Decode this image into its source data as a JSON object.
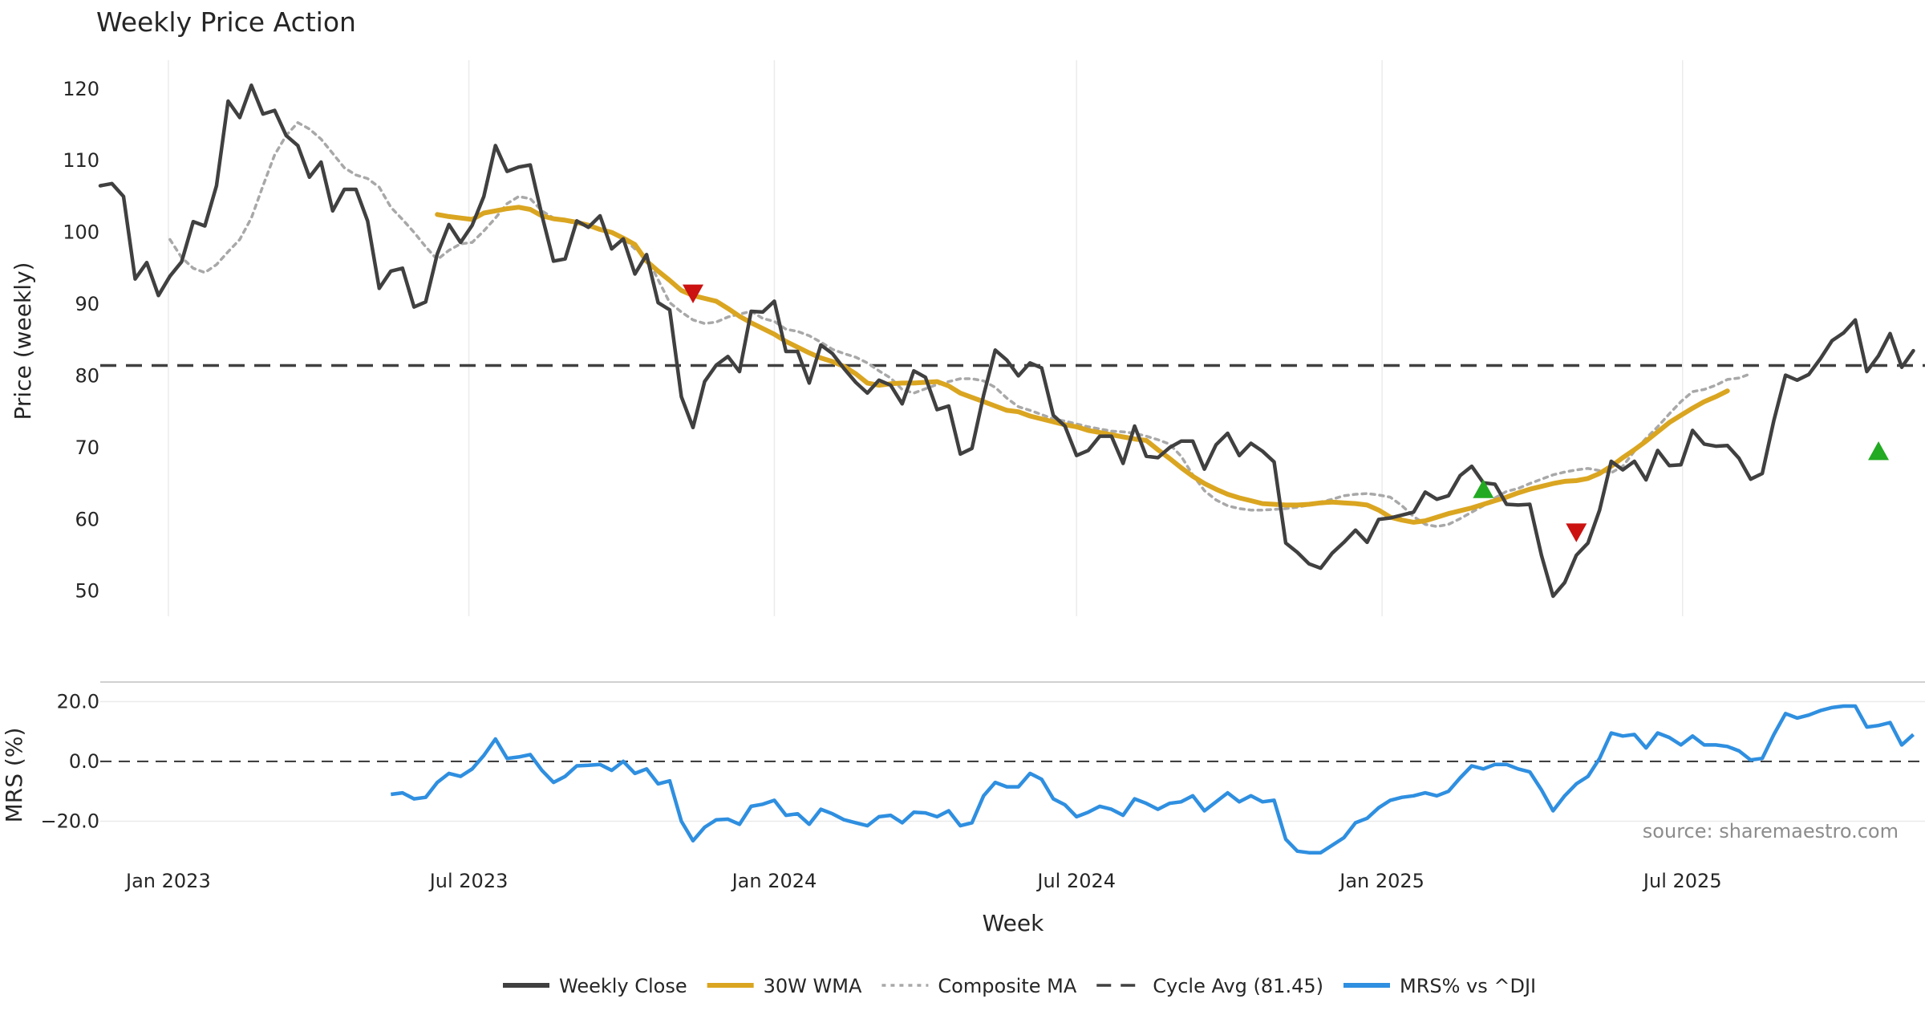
{
  "chart_data": [
    {
      "type": "line",
      "title": "Weekly Price Action",
      "xlabel": "",
      "ylabel": "Price (weekly)",
      "ylim": [
        46.5,
        124
      ],
      "yticks": [
        50,
        60,
        70,
        80,
        90,
        100,
        110,
        120
      ],
      "x_start": "2022-11-21",
      "x_step_days": 7,
      "xlim": [
        "2022-11-21",
        "2025-11-24"
      ],
      "xticks": [
        {
          "date": "2023-01-01",
          "label": "Jan 2023"
        },
        {
          "date": "2023-07-01",
          "label": "Jul 2023"
        },
        {
          "date": "2024-01-01",
          "label": "Jan 2024"
        },
        {
          "date": "2024-07-01",
          "label": "Jul 2024"
        },
        {
          "date": "2025-01-01",
          "label": "Jan 2025"
        },
        {
          "date": "2025-07-01",
          "label": "Jul 2025"
        }
      ],
      "cycle_avg": 81.45,
      "series": [
        {
          "name": "Weekly Close",
          "color": "#404040",
          "start_index": 0,
          "values": [
            106.5,
            106.8,
            105.0,
            93.5,
            95.8,
            91.2,
            93.9,
            95.9,
            101.5,
            100.9,
            106.5,
            118.3,
            116.0,
            120.5,
            116.5,
            117.0,
            113.5,
            112.1,
            107.7,
            109.8,
            103.0,
            106.0,
            106.0,
            101.6,
            92.2,
            94.6,
            95.0,
            89.6,
            90.3,
            97.0,
            101.1,
            98.6,
            101.0,
            105.0,
            112.1,
            108.5,
            109.1,
            109.4,
            102.4,
            96.0,
            96.3,
            101.6,
            100.7,
            102.3,
            97.7,
            99.1,
            94.2,
            96.9,
            90.2,
            89.2,
            77.1,
            72.8,
            79.2,
            81.5,
            82.7,
            80.6,
            89.0,
            88.9,
            90.4,
            83.4,
            83.4,
            79.0,
            84.3,
            83.1,
            81.0,
            79.1,
            77.6,
            79.4,
            78.7,
            76.1,
            80.7,
            79.8,
            75.3,
            75.8,
            69.1,
            69.9,
            77.3,
            83.6,
            82.2,
            80.0,
            81.8,
            81.1,
            74.5,
            73.0,
            68.9,
            69.6,
            71.6,
            71.6,
            67.8,
            73.0,
            68.8,
            68.6,
            70.0,
            70.9,
            70.9,
            67.0,
            70.4,
            72.0,
            68.9,
            70.6,
            69.5,
            68.0,
            56.7,
            55.4,
            53.8,
            53.2,
            55.3,
            56.8,
            58.5,
            56.8,
            60.0,
            60.2,
            60.6,
            61.0,
            63.8,
            62.8,
            63.3,
            66.1,
            67.4,
            65.1,
            64.9,
            62.1,
            62.0,
            62.1,
            55.0,
            49.3,
            51.2,
            55.0,
            56.7,
            61.3,
            68.1,
            66.9,
            68.1,
            65.5,
            69.6,
            67.5,
            67.6,
            72.4,
            70.5,
            70.2,
            70.3,
            68.5,
            65.6,
            66.4,
            73.8,
            80.1,
            79.4,
            80.2,
            82.4,
            84.9,
            86.0,
            87.8,
            80.6,
            82.8,
            85.9,
            81.2,
            83.5
          ]
        },
        {
          "name": "30W WMA",
          "color": "#DAA520",
          "start_index": 29,
          "values": [
            102.5,
            102.2,
            102.0,
            101.8,
            102.7,
            103.0,
            103.3,
            103.5,
            103.2,
            102.3,
            101.9,
            101.7,
            101.4,
            101.0,
            100.4,
            100.0,
            99.2,
            98.3,
            96.0,
            94.6,
            93.3,
            91.9,
            91.2,
            90.8,
            90.4,
            89.4,
            88.3,
            87.4,
            86.6,
            85.8,
            84.8,
            84.0,
            83.2,
            82.5,
            82.0,
            81.3,
            80.3,
            79.0,
            78.7,
            78.9,
            79.0,
            79.0,
            79.1,
            79.2,
            78.6,
            77.6,
            77.0,
            76.4,
            75.8,
            75.2,
            75.0,
            74.4,
            74.0,
            73.6,
            73.2,
            72.9,
            72.4,
            72.1,
            71.8,
            71.5,
            71.2,
            71.0,
            69.7,
            68.5,
            67.2,
            66.0,
            65.0,
            64.2,
            63.5,
            63.0,
            62.6,
            62.2,
            62.1,
            62.0,
            62.0,
            62.1,
            62.3,
            62.4,
            62.3,
            62.2,
            62.0,
            61.3,
            60.3,
            59.9,
            59.6,
            59.8,
            60.3,
            60.8,
            61.2,
            61.6,
            62.1,
            62.6,
            63.1,
            63.7,
            64.2,
            64.6,
            65.0,
            65.3,
            65.4,
            65.7,
            66.4,
            67.4,
            68.6,
            69.7,
            70.9,
            72.2,
            73.5,
            74.5,
            75.5,
            76.4,
            77.1,
            77.9
          ]
        },
        {
          "name": "Composite MA",
          "color": "#a8a8a8",
          "start_index": 6,
          "values": [
            99.0,
            96.5,
            95.0,
            94.4,
            95.5,
            97.3,
            99.0,
            102.0,
            106.5,
            110.8,
            113.5,
            115.3,
            114.4,
            113.0,
            111.0,
            109.0,
            108.0,
            107.5,
            106.3,
            103.5,
            101.8,
            100.0,
            98.0,
            96.2,
            97.5,
            98.4,
            98.6,
            100.2,
            102.0,
            104.0,
            105.0,
            104.7,
            103.0,
            102.0,
            101.6,
            101.2,
            101.1,
            100.4,
            99.9,
            99.2,
            97.7,
            96.6,
            93.4,
            90.2,
            88.9,
            87.8,
            87.3,
            87.5,
            88.2,
            88.6,
            89.0,
            88.0,
            87.6,
            86.5,
            86.2,
            85.6,
            84.7,
            83.7,
            83.1,
            82.6,
            81.8,
            80.7,
            79.7,
            78.1,
            77.6,
            78.2,
            78.8,
            79.2,
            79.6,
            79.6,
            79.3,
            78.4,
            76.9,
            75.7,
            75.2,
            74.6,
            74.0,
            73.7,
            73.3,
            72.9,
            72.6,
            72.3,
            72.2,
            72.0,
            71.6,
            71.1,
            70.5,
            68.8,
            66.2,
            64.0,
            62.7,
            61.9,
            61.5,
            61.3,
            61.3,
            61.4,
            61.5,
            61.7,
            62.0,
            62.4,
            62.8,
            63.3,
            63.5,
            63.6,
            63.4,
            63.1,
            61.9,
            60.4,
            59.3,
            59.0,
            59.3,
            60.1,
            61.0,
            61.9,
            63.0,
            63.9,
            64.3,
            65.0,
            65.6,
            66.2,
            66.6,
            66.9,
            67.1,
            66.8,
            66.5,
            67.4,
            69.5,
            71.3,
            72.9,
            74.7,
            76.4,
            77.8,
            78.1,
            78.7,
            79.5,
            79.7,
            80.3
          ]
        }
      ],
      "markers": [
        {
          "type": "sell",
          "index": 51,
          "value": 91.5,
          "color": "#cc1111"
        },
        {
          "type": "buy",
          "index": 119,
          "value": 64.2,
          "color": "#22aa22"
        },
        {
          "type": "sell",
          "index": 127,
          "value": 58.2,
          "color": "#cc1111"
        },
        {
          "type": "buy",
          "index": 153,
          "value": 69.5,
          "color": "#22aa22"
        }
      ]
    },
    {
      "type": "line",
      "title": "",
      "xlabel": "Week",
      "ylabel": "MRS (%)",
      "ylim": [
        -33,
        26
      ],
      "yticks": [
        {
          "value": 20,
          "label": "20.0"
        },
        {
          "value": 0,
          "label": "0.0"
        },
        {
          "value": -20,
          "label": "−20.0"
        }
      ],
      "zero_line": 0,
      "series": [
        {
          "name": "MRS% vs ^DJI",
          "color": "#2f8fe0",
          "start_index": 25,
          "values": [
            -11.0,
            -10.5,
            -12.5,
            -12.0,
            -7.0,
            -4.0,
            -5.0,
            -2.5,
            2.0,
            7.5,
            1.0,
            1.5,
            2.3,
            -3.0,
            -7.0,
            -5.0,
            -1.5,
            -1.3,
            -1.0,
            -3.0,
            0.0,
            -4.0,
            -2.5,
            -7.5,
            -6.5,
            -20.0,
            -26.5,
            -22.0,
            -19.5,
            -19.3,
            -21.0,
            -15.0,
            -14.3,
            -13.0,
            -18.0,
            -17.5,
            -21.0,
            -16.0,
            -17.5,
            -19.5,
            -20.5,
            -21.5,
            -18.5,
            -18.0,
            -20.5,
            -17.0,
            -17.2,
            -18.5,
            -16.5,
            -21.5,
            -20.5,
            -11.5,
            -7.0,
            -8.5,
            -8.5,
            -4.0,
            -6.0,
            -12.5,
            -14.5,
            -18.5,
            -17.0,
            -15.0,
            -16.0,
            -18.0,
            -12.5,
            -14.0,
            -16.0,
            -14.0,
            -13.5,
            -11.5,
            -16.5,
            -13.5,
            -10.5,
            -13.5,
            -11.5,
            -13.5,
            -13.0,
            -26.0,
            -30.0,
            -30.5,
            -30.5,
            -28.0,
            -25.5,
            -20.5,
            -19.0,
            -15.5,
            -13.0,
            -12.0,
            -11.5,
            -10.5,
            -11.5,
            -10.0,
            -5.5,
            -1.5,
            -2.5,
            -1.0,
            -1.0,
            -2.5,
            -3.5,
            -9.5,
            -16.5,
            -11.5,
            -7.5,
            -5.0,
            1.0,
            9.5,
            8.5,
            9.0,
            4.5,
            9.5,
            8.0,
            5.5,
            8.5,
            5.5,
            5.5,
            5.0,
            3.5,
            0.5,
            1.0,
            9.0,
            16.0,
            14.5,
            15.5,
            17.0,
            18.0,
            18.5,
            18.5,
            11.5,
            12.0,
            13.0,
            5.5,
            9.0
          ]
        }
      ]
    }
  ],
  "legend": [
    {
      "label": "Weekly Close",
      "style": "solid",
      "color": "#404040"
    },
    {
      "label": "30W WMA",
      "style": "solid",
      "color": "#DAA520"
    },
    {
      "label": "Composite MA",
      "style": "dotted",
      "color": "#a8a8a8"
    },
    {
      "label": "Cycle Avg (81.45)",
      "style": "dashed",
      "color": "#404040"
    },
    {
      "label": "MRS% vs ^DJI",
      "style": "solid",
      "color": "#2f8fe0"
    }
  ],
  "watermark": "source: sharemaestro.com"
}
